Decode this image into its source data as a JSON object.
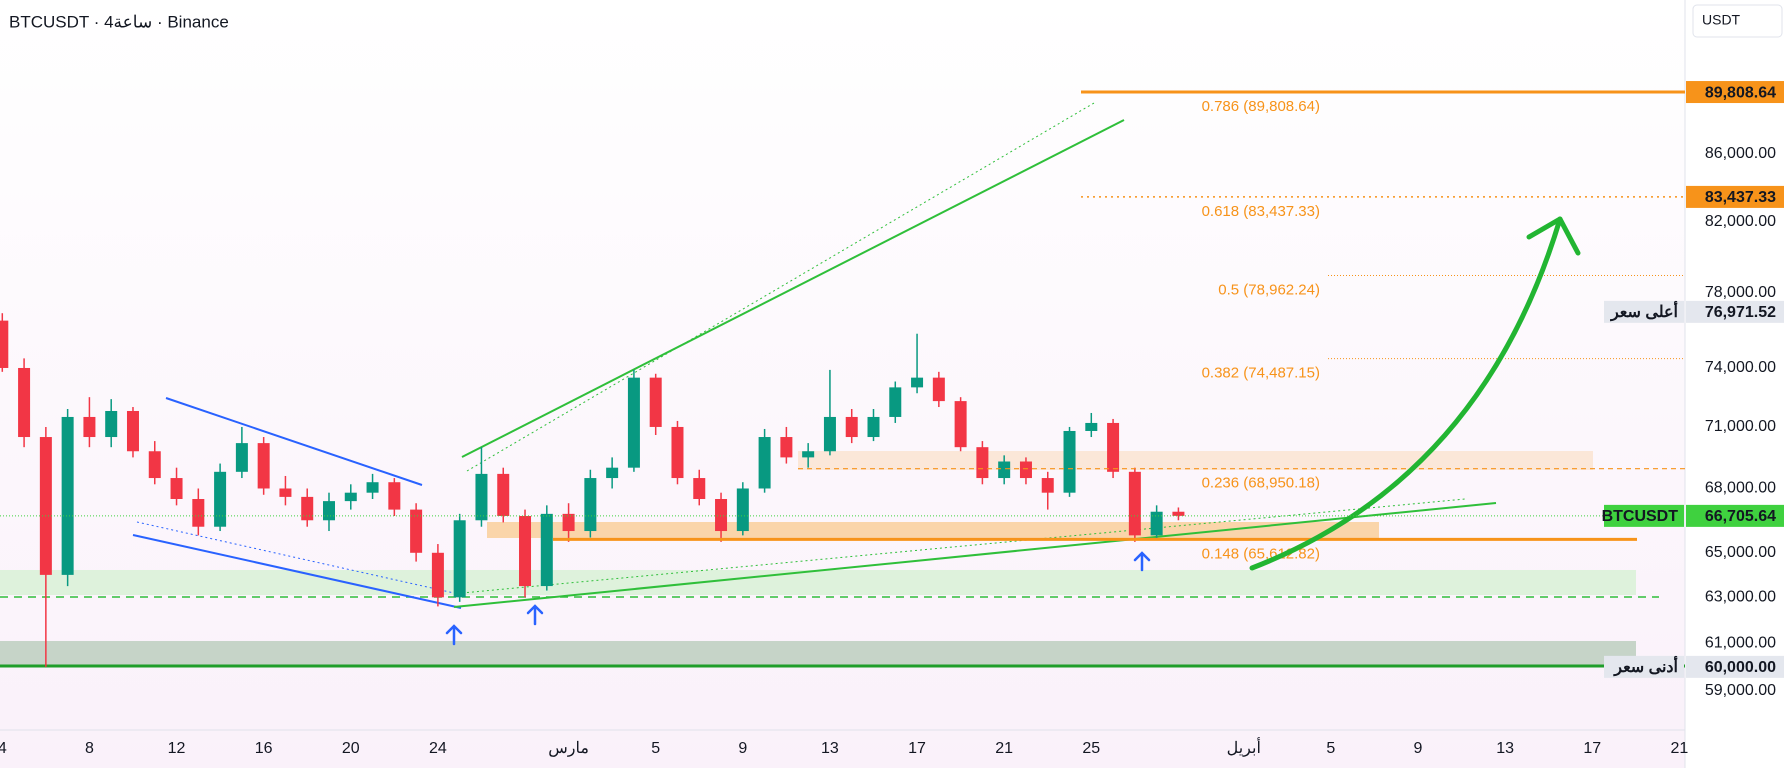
{
  "header": {
    "title": "BTCUSDT · 4ساعة · Binance",
    "currency": "USDT"
  },
  "chart_data": {
    "type": "candlestick",
    "categories": [
      "4",
      null,
      null,
      null,
      "8",
      null,
      null,
      null,
      "12",
      null,
      null,
      null,
      "16",
      null,
      null,
      null,
      "20",
      null,
      null,
      null,
      "24",
      null,
      null,
      null,
      null,
      null,
      "مارس",
      null,
      null,
      null,
      "5",
      null,
      null,
      null,
      "9",
      null,
      null,
      null,
      "13",
      null,
      null,
      null,
      "17",
      null,
      null,
      null,
      "21",
      null,
      null,
      null,
      "25",
      null,
      null,
      null,
      null,
      null,
      null,
      "أبريل",
      null,
      null,
      null,
      "5",
      null,
      null,
      null,
      "9",
      null,
      null,
      null,
      "13",
      null,
      null,
      null,
      "17",
      null,
      null,
      null,
      "21"
    ],
    "open": [
      76500,
      74000,
      70500,
      64000,
      71500,
      70500,
      71800,
      69800,
      68500,
      67500,
      66200,
      68800,
      70200,
      68000,
      67600,
      66500,
      67400,
      67800,
      68300,
      67000,
      65000,
      63000,
      66500,
      68700,
      66700,
      63500,
      66800,
      66000,
      68500,
      69000,
      73500,
      71000,
      68500,
      67500,
      66000,
      68000,
      70500,
      69500,
      69800,
      71500,
      70500,
      71500,
      73000,
      73500,
      72300,
      70000,
      68500,
      69300,
      68500,
      67800,
      70800,
      71200,
      68800,
      65800,
      66900,
      null,
      null,
      null,
      null,
      null,
      null,
      null,
      null,
      null,
      null,
      null,
      null,
      null,
      null,
      null,
      null,
      null,
      null,
      null,
      null,
      null,
      null,
      null
    ],
    "high": [
      76900,
      74500,
      71000,
      71900,
      72500,
      72400,
      72000,
      70300,
      69000,
      68000,
      69200,
      71000,
      70500,
      68600,
      68000,
      67800,
      68200,
      68700,
      68500,
      67300,
      65400,
      66800,
      70000,
      69000,
      67000,
      67200,
      67300,
      68900,
      69500,
      73900,
      73700,
      71300,
      68900,
      67800,
      68300,
      70900,
      71000,
      70200,
      73900,
      71900,
      71900,
      73300,
      75800,
      73800,
      72500,
      70300,
      69600,
      69500,
      68800,
      71000,
      71700,
      71400,
      69000,
      67200,
      67100,
      null,
      null,
      null,
      null,
      null,
      null,
      null,
      null,
      null,
      null,
      null,
      null,
      null,
      null,
      null,
      null,
      null,
      null,
      null,
      null,
      null,
      null,
      null
    ],
    "low": [
      73800,
      70000,
      60000,
      63500,
      70000,
      70000,
      69500,
      68200,
      67200,
      65800,
      66000,
      68500,
      67700,
      67200,
      66200,
      66000,
      67000,
      67500,
      66700,
      64600,
      62600,
      62800,
      66200,
      66400,
      63000,
      63300,
      65500,
      65700,
      68000,
      68800,
      70600,
      68200,
      67200,
      65500,
      65800,
      67800,
      69200,
      69000,
      69600,
      70200,
      70300,
      71200,
      72700,
      72000,
      69800,
      68200,
      68200,
      68200,
      67000,
      67600,
      70500,
      68500,
      65500,
      65600,
      66500,
      null,
      null,
      null,
      null,
      null,
      null,
      null,
      null,
      null,
      null,
      null,
      null,
      null,
      null,
      null,
      null,
      null,
      null,
      null,
      null,
      null,
      null,
      null
    ],
    "close": [
      74000,
      70500,
      64000,
      71500,
      70500,
      71800,
      69800,
      68500,
      67500,
      66200,
      68800,
      70200,
      68000,
      67600,
      66500,
      67400,
      67800,
      68300,
      67000,
      65000,
      63000,
      66500,
      68700,
      66700,
      63500,
      66800,
      66000,
      68500,
      69000,
      73500,
      71000,
      68500,
      67500,
      66000,
      68000,
      70500,
      69500,
      69800,
      71500,
      70500,
      71500,
      73000,
      73500,
      72300,
      70000,
      68500,
      69300,
      68500,
      67800,
      70800,
      71200,
      68800,
      65800,
      66900,
      66705.64,
      null,
      null,
      null,
      null,
      null,
      null,
      null,
      null,
      null,
      null,
      null,
      null,
      null,
      null,
      null,
      null,
      null,
      null,
      null,
      null,
      null,
      null,
      null
    ],
    "up_color": "#089981",
    "down_color": "#f23645",
    "log_scale": true,
    "ylim": [
      57400,
      95800
    ],
    "yticks": [
      {
        "value": 59000,
        "label": "59,000.00"
      },
      {
        "value": 61000,
        "label": "61,000.00"
      },
      {
        "value": 63000,
        "label": "63,000.00"
      },
      {
        "value": 65000,
        "label": "65,000.00"
      },
      {
        "value": 68000,
        "label": "68,000.00"
      },
      {
        "value": 71000,
        "label": "71,000.00"
      },
      {
        "value": 74000,
        "label": "74,000.00"
      },
      {
        "value": 78000,
        "label": "78,000.00"
      },
      {
        "value": 82000,
        "label": "82,000.00"
      },
      {
        "value": 86000,
        "label": "86,000.00"
      }
    ],
    "fib_levels": [
      {
        "value": 89808.64,
        "label": "0.786 (89,808.64)"
      },
      {
        "value": 83437.33,
        "label": "0.618 (83,437.33)"
      },
      {
        "value": 78962.24,
        "label": "0.5 (78,962.24)"
      },
      {
        "value": 74487.15,
        "label": "0.382 (74,487.15)"
      },
      {
        "value": 68950.18,
        "label": "0.236 (68,950.18)"
      },
      {
        "value": 65612.82,
        "label": "0.148 (65,612.82)"
      }
    ],
    "fib_color": "#f7931a",
    "price_badges": [
      {
        "value": 89808.64,
        "label": "89,808.64",
        "color": "#f7931a"
      },
      {
        "value": 83437.33,
        "label": "83,437.33",
        "color": "#f7931a"
      },
      {
        "value": 76971.52,
        "label": "76,971.52",
        "color": "#e4e7ee",
        "tag": "أعلى سعر"
      },
      {
        "value": 66705.64,
        "label": "66,705.64",
        "color": "#3fd13f",
        "tag": "BTCUSDT"
      },
      {
        "value": 60000,
        "label": "60,000.00",
        "color": "#e4e7ee",
        "tag": "أدنى سعر"
      }
    ]
  }
}
